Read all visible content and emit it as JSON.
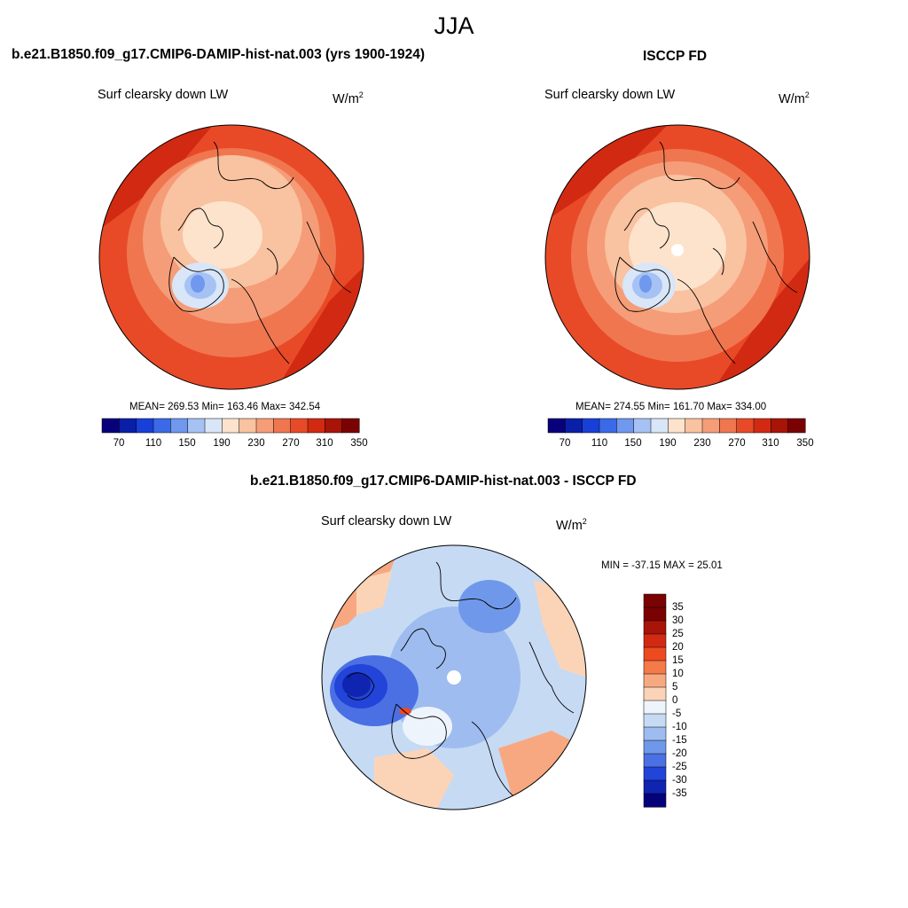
{
  "figure": {
    "season": "JJA"
  },
  "panels": [
    {
      "id": "model",
      "title": "b.e21.B1850.f09_g17.CMIP6-DAMIP-hist-nat.003 (yrs 1900-1924)",
      "variable": "Surf clearsky down LW",
      "units_base": "W/m",
      "units_exp": "2",
      "stats_text": "MEAN= 269.53  Min= 163.46  Max= 342.54",
      "stats": {
        "mean": 269.53,
        "min": 163.46,
        "max": 342.54
      },
      "colorbar": {
        "labels": [
          "70",
          "110",
          "150",
          "190",
          "230",
          "270",
          "310",
          "350"
        ],
        "levels": [
          70,
          90,
          110,
          130,
          150,
          170,
          190,
          210,
          230,
          250,
          270,
          290,
          310,
          330,
          350
        ]
      }
    },
    {
      "id": "obs",
      "title": "ISCCP FD",
      "variable": "Surf clearsky down LW",
      "units_base": "W/m",
      "units_exp": "2",
      "stats_text": "MEAN= 274.55  Min= 161.70  Max= 334.00",
      "stats": {
        "mean": 274.55,
        "min": 161.7,
        "max": 334.0
      },
      "colorbar": {
        "labels": [
          "70",
          "110",
          "150",
          "190",
          "230",
          "270",
          "310",
          "350"
        ],
        "levels": [
          70,
          90,
          110,
          130,
          150,
          170,
          190,
          210,
          230,
          250,
          270,
          290,
          310,
          330,
          350
        ]
      }
    },
    {
      "id": "diff",
      "title": "b.e21.B1850.f09_g17.CMIP6-DAMIP-hist-nat.003 - ISCCP FD",
      "variable": "Surf clearsky down LW",
      "units_base": "W/m",
      "units_exp": "2",
      "stats_text": "MIN = -37.15 MAX =  25.01",
      "stats": {
        "min": -37.15,
        "max": 25.01
      },
      "colorbar": {
        "labels": [
          "35",
          "30",
          "25",
          "20",
          "15",
          "10",
          "5",
          "0",
          "-5",
          "-10",
          "-15",
          "-20",
          "-25",
          "-30",
          "-35"
        ],
        "levels": [
          35,
          30,
          25,
          20,
          15,
          10,
          5,
          0,
          -5,
          -10,
          -15,
          -20,
          -25,
          -30,
          -35
        ]
      }
    }
  ],
  "colors": {
    "abs_scale": [
      "#08007a",
      "#0a1fa8",
      "#1840d8",
      "#3a6ae8",
      "#6f98ee",
      "#a6c2f4",
      "#d8e6f8",
      "#fde3cc",
      "#f9c2a0",
      "#f59d78",
      "#f07650",
      "#e84a28",
      "#d22a12",
      "#a81408",
      "#7a0202"
    ],
    "diff_scale": [
      "#7a0202",
      "#a81408",
      "#d22a12",
      "#ee4a20",
      "#f47a4a",
      "#f8a880",
      "#fbd4b8",
      "#eef4fb",
      "#c6daf4",
      "#9ebcef",
      "#7098ea",
      "#4a70e4",
      "#2244d8",
      "#0f24b0",
      "#05037a"
    ],
    "land_outline": "#000000"
  },
  "map": {
    "projection": "polar-stereographic",
    "hemisphere": "north"
  }
}
